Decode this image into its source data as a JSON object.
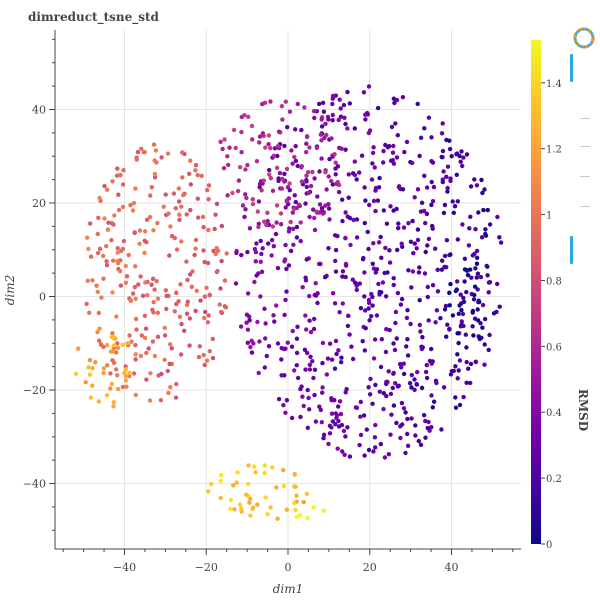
{
  "chart_data": {
    "type": "scatter",
    "title": "dimreduct_tsne_std",
    "xlabel": "dim1",
    "ylabel": "dim2",
    "xlim": [
      -57,
      57
    ],
    "ylim": [
      -54,
      57
    ],
    "x_ticks": [
      -40,
      -20,
      0,
      20,
      40
    ],
    "y_ticks": [
      -40,
      -20,
      0,
      20,
      40
    ],
    "grid": true,
    "color_by": "RMSD",
    "colorbar": {
      "label": "RMSD",
      "range": [
        0,
        1.53
      ],
      "ticks": [
        0,
        0.2,
        0.4,
        0.6,
        0.8,
        1,
        1.2,
        1.4
      ],
      "colormap": "plasma",
      "colors": [
        "#0d0887",
        "#46039f",
        "#7201a8",
        "#9c179e",
        "#bd3786",
        "#d8576b",
        "#ed7953",
        "#fb9f3a",
        "#fdca26",
        "#f0f921"
      ]
    },
    "regions": [
      {
        "name": "main cloud right",
        "center": [
          20,
          5
        ],
        "radius": [
          33,
          40
        ],
        "rmsd_approx": 0.35
      },
      {
        "name": "upper central arm",
        "center": [
          -2,
          28
        ],
        "radius": [
          16,
          14
        ],
        "rmsd_approx": 0.6
      },
      {
        "name": "left lobe",
        "center": [
          -32,
          5
        ],
        "radius": [
          18,
          28
        ],
        "rmsd_approx": 0.8
      },
      {
        "name": "lower-left tail",
        "center": [
          -45,
          -15
        ],
        "radius": [
          7,
          9
        ],
        "rmsd_approx": 1.05
      },
      {
        "name": "bottom cluster",
        "center": [
          -8,
          -42
        ],
        "radius": [
          14,
          6
        ],
        "rmsd_approx": 1.3
      },
      {
        "name": "bottom tip",
        "center": [
          6,
          -46
        ],
        "radius": [
          5,
          2
        ],
        "rmsd_approx": 1.5
      },
      {
        "name": "far-right lobe",
        "center": [
          45,
          -2
        ],
        "radius": [
          6,
          10
        ],
        "rmsd_approx": 0.2
      }
    ]
  },
  "toolbar": {
    "logo_icon": "bokeh-logo-icon",
    "tools": [
      "pan-tool-icon",
      "box-zoom-tool-icon",
      "wheel-zoom-tool-icon",
      "save-tool-icon",
      "reset-tool-icon",
      "hover-tool-icon"
    ]
  }
}
